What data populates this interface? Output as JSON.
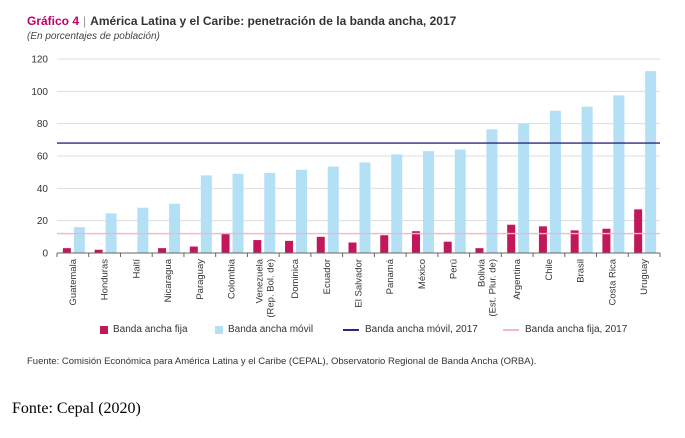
{
  "figure": {
    "label": "Gráfico 4",
    "separator": "|",
    "title": "América Latina y el Caribe: penetración de la banda ancha, 2017",
    "subtitle": "(En porcentajes de población)",
    "source": "Fuente: Comisión Económica para América Latina y el Caribe (CEPAL), Observatorio Regional de Banda Ancha (ORBA).",
    "caption": "Fonte: Cepal (2020)"
  },
  "legend": {
    "fixed": "Banda ancha fija",
    "mobile": "Banda ancha móvil",
    "mobile_avg": "Banda ancha móvil, 2017",
    "fixed_avg": "Banda ancha fija, 2017"
  },
  "colors": {
    "fixed": "#c2185b",
    "mobile": "#b3e0f5",
    "mobile_avg": "#2e2a7a",
    "fixed_avg": "#f2b6cc",
    "grid": "#dddddd",
    "label_pipe": "#c0006a"
  },
  "chart_data": {
    "type": "bar",
    "ylim": [
      0,
      120
    ],
    "yticks": [
      0,
      20,
      40,
      60,
      80,
      100,
      120
    ],
    "grid": true,
    "legend_position": "bottom",
    "categories": [
      "Guatemala",
      "Honduras",
      "Haití",
      "Nicaragua",
      "Paraguay",
      "Colombia",
      "Venezuela (Rep. Bol. de)",
      "Dominica",
      "Ecuador",
      "El Salvador",
      "Panamá",
      "México",
      "Perú",
      "Bolivia (Est. Plur. de)",
      "Argentina",
      "Chile",
      "Brasil",
      "Costa Rica",
      "Uruguay"
    ],
    "category_lines": [
      [
        "Guatemala"
      ],
      [
        "Honduras"
      ],
      [
        "Haití"
      ],
      [
        "Nicaragua"
      ],
      [
        "Paraguay"
      ],
      [
        "Colombia"
      ],
      [
        "Venezuela",
        "(Rep. Bol. de)"
      ],
      [
        "Dominica"
      ],
      [
        "Ecuador"
      ],
      [
        "El Salvador"
      ],
      [
        "Panamá"
      ],
      [
        "México"
      ],
      [
        "Perú"
      ],
      [
        "Bolivia",
        "(Est. Plur. de)"
      ],
      [
        "Argentina"
      ],
      [
        "Chile"
      ],
      [
        "Brasil"
      ],
      [
        "Costa Rica"
      ],
      [
        "Uruguay"
      ]
    ],
    "series": [
      {
        "name": "Banda ancha fija",
        "values": [
          3,
          2,
          0,
          3,
          4,
          12,
          8,
          7.5,
          10,
          6.5,
          11,
          13.5,
          7,
          3,
          17.5,
          16.5,
          14,
          15,
          27
        ]
      },
      {
        "name": "Banda ancha móvil",
        "values": [
          16,
          24.5,
          28,
          30.5,
          48,
          49,
          49.5,
          51.5,
          53.5,
          56,
          61,
          63,
          64,
          76.5,
          80,
          88,
          90.5,
          97.5,
          112.5
        ]
      }
    ],
    "reference_lines": [
      {
        "name": "Banda ancha móvil, 2017",
        "value": 68
      },
      {
        "name": "Banda ancha fija, 2017",
        "value": 12
      }
    ]
  }
}
